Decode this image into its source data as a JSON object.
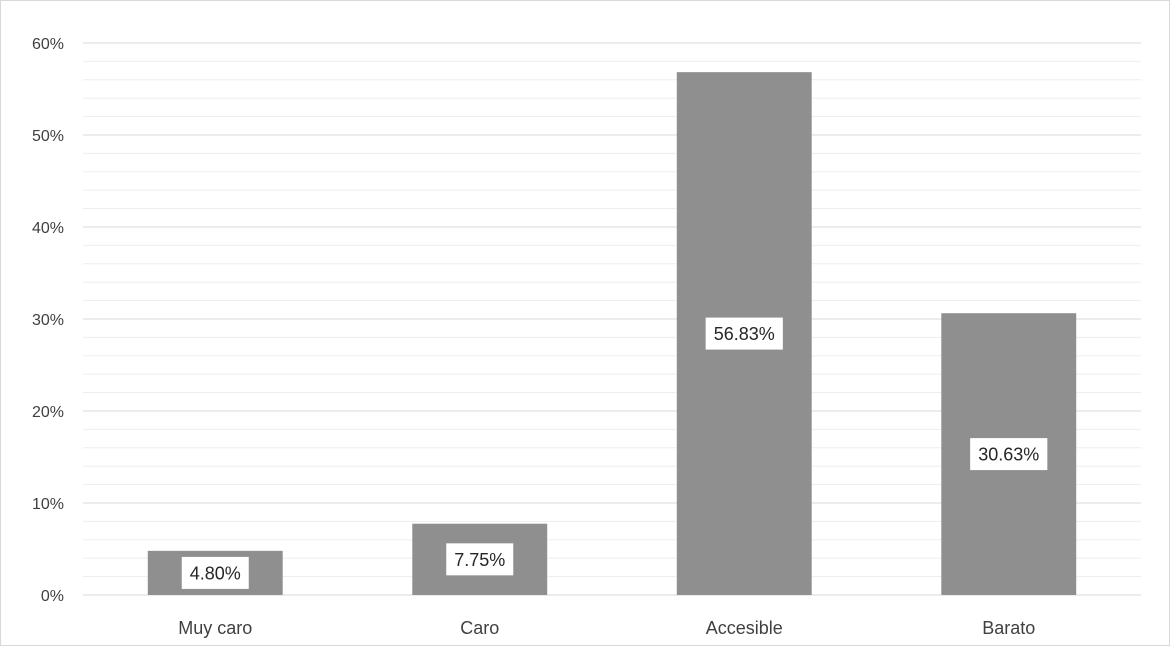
{
  "chart_data": {
    "type": "bar",
    "title": "",
    "xlabel": "",
    "ylabel": "",
    "categories": [
      "Muy caro",
      "Caro",
      "Accesible",
      "Barato"
    ],
    "values": [
      4.8,
      7.75,
      56.83,
      30.63
    ],
    "data_labels": [
      "4.80%",
      "7.75%",
      "56.83%",
      "30.63%"
    ],
    "ylim": [
      0,
      60
    ],
    "yticks": [
      0,
      10,
      20,
      30,
      40,
      50,
      60
    ],
    "ytick_labels": [
      "0%",
      "10%",
      "20%",
      "30%",
      "40%",
      "50%",
      "60%"
    ],
    "grid": true,
    "minor_grid": true,
    "legend": "none",
    "colors": {
      "bar": "#8f8f8f",
      "grid_major": "#d9d9d9",
      "grid_minor": "#ededed",
      "label_box": "#ffffff"
    }
  }
}
